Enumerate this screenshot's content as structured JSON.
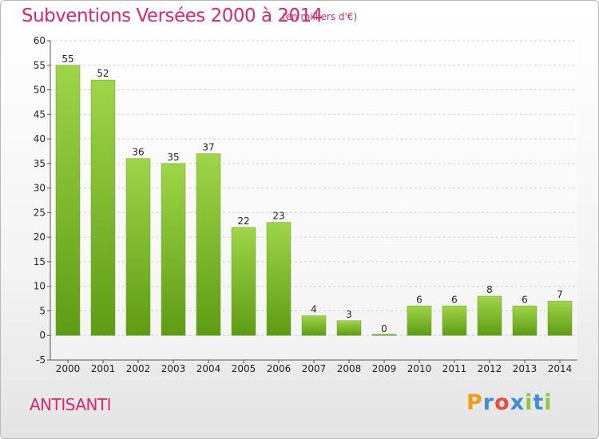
{
  "chart_data": {
    "type": "bar",
    "title": "Subventions Versées 2000 à 2014",
    "subtitle": "(en milliers d'€)",
    "categories": [
      "2000",
      "2001",
      "2002",
      "2003",
      "2004",
      "2005",
      "2006",
      "2007",
      "2008",
      "2009",
      "2010",
      "2011",
      "2012",
      "2013",
      "2014"
    ],
    "values": [
      55,
      52,
      36,
      35,
      37,
      22,
      23,
      4,
      3,
      0,
      6,
      6,
      8,
      6,
      7
    ],
    "ylim": [
      -5,
      60
    ],
    "yticks": [
      -5,
      0,
      5,
      10,
      15,
      20,
      25,
      30,
      35,
      40,
      45,
      50,
      55,
      60
    ],
    "grid": true,
    "colors": {
      "bar_top": "#9fd548",
      "bar_bottom": "#5e9c14",
      "title": "#d9286b"
    }
  },
  "place_name": "ANTISANTI",
  "logo": {
    "letters": [
      "P",
      "r",
      "o",
      "x",
      "i",
      "t",
      "i"
    ],
    "colors": [
      "#f39c12",
      "#3b8fd6",
      "#e74c3c",
      "#3b8fd6",
      "#8cc63f",
      "#3b8fd6",
      "#8cc63f"
    ]
  }
}
